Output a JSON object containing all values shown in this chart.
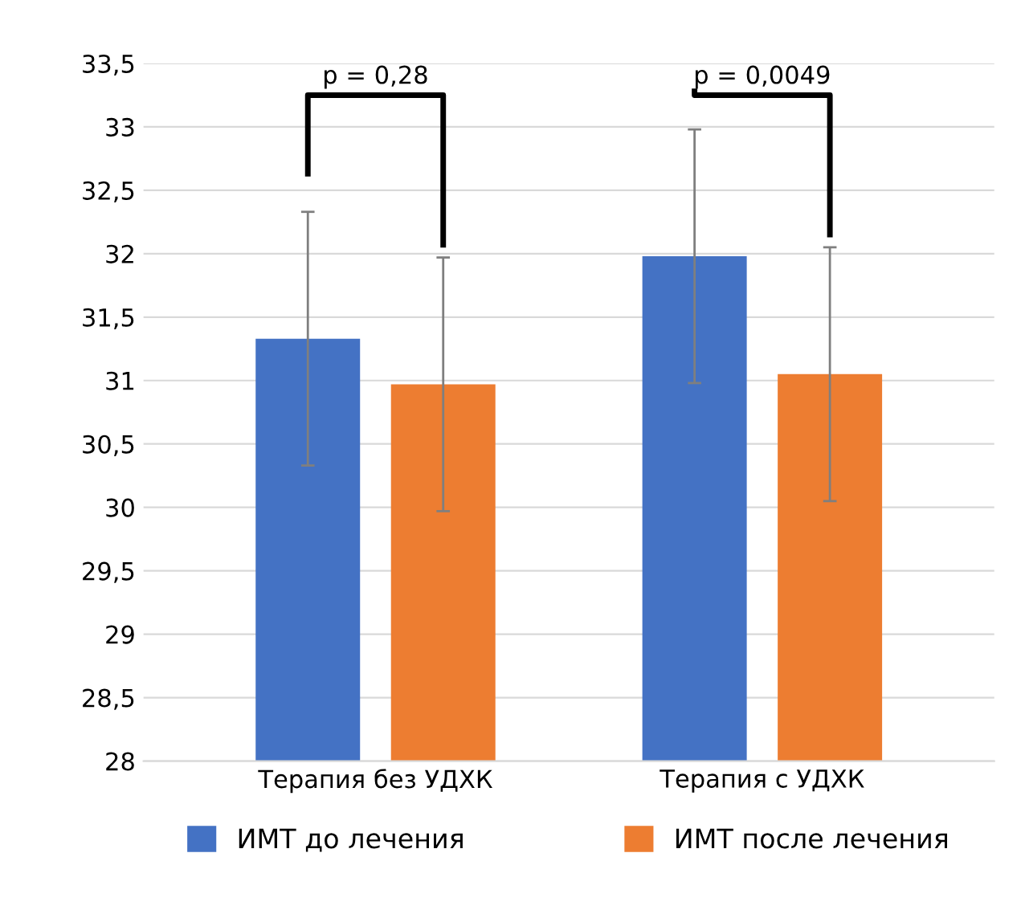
{
  "chart_data": {
    "type": "bar",
    "categories": [
      "Терапия без УДХК",
      "Терапия с УДХК"
    ],
    "series": [
      {
        "name": "ИМТ до лечения",
        "color": "#4472c4",
        "values": [
          31.33,
          31.98
        ],
        "errors": [
          1,
          1
        ]
      },
      {
        "name": "ИМТ после лечения",
        "color": "#ed7d31",
        "values": [
          30.97,
          31.05
        ],
        "errors": [
          1,
          1
        ]
      }
    ],
    "ylim": [
      28,
      33.5
    ],
    "yticks": [
      {
        "value": 28,
        "label": "28"
      },
      {
        "value": 28.5,
        "label": "28,5"
      },
      {
        "value": 29,
        "label": "29"
      },
      {
        "value": 29.5,
        "label": "29,5"
      },
      {
        "value": 30,
        "label": "30"
      },
      {
        "value": 30.5,
        "label": "30,5"
      },
      {
        "value": 31,
        "label": "31"
      },
      {
        "value": 31.5,
        "label": "31,5"
      },
      {
        "value": 32,
        "label": "32"
      },
      {
        "value": 32.5,
        "label": "32,5"
      },
      {
        "value": 33,
        "label": "33"
      },
      {
        "value": 33.5,
        "label": "33,5"
      }
    ],
    "grid": "y",
    "legend": "bottom",
    "annotations": [
      "p = 0,28",
      "p = 0,0049"
    ]
  }
}
